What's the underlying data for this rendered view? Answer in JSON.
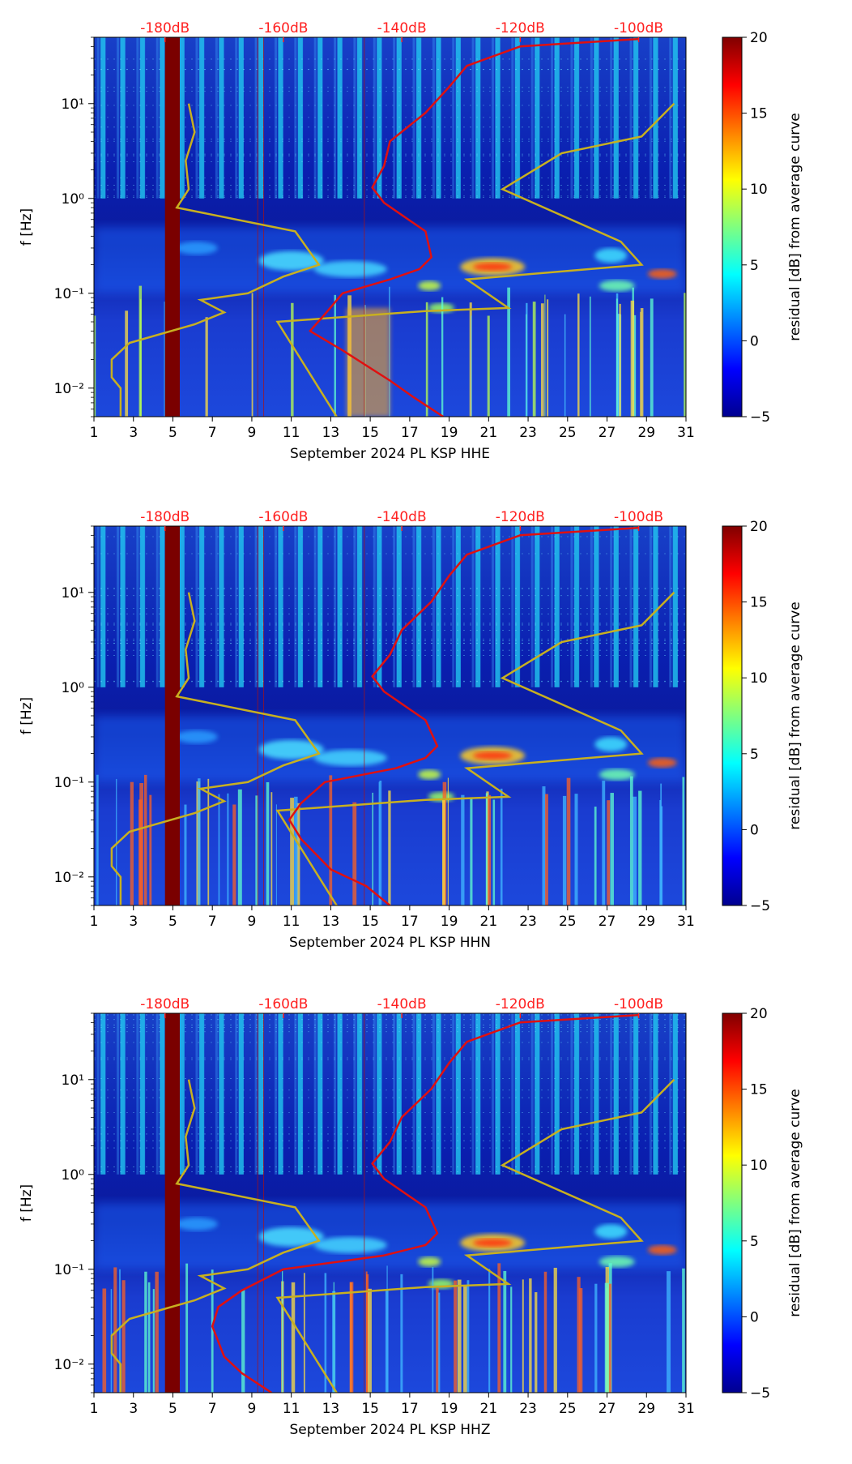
{
  "figure": {
    "top_scale_labels": [
      "-180dB",
      "-160dB",
      "-140dB",
      "-120dB",
      "-100dB"
    ],
    "colors": {
      "top_scale": "#ff2020",
      "model_curves": "#c8b020",
      "psd_curve": "#e01010",
      "event_band": "#7a0000",
      "background_low": "#00008f"
    }
  },
  "chart_data": [
    {
      "type": "heatmap",
      "title": "",
      "xlabel": "September 2024 PL KSP  HHE",
      "ylabel": "f [Hz]",
      "x_ticks": [
        "1",
        "3",
        "5",
        "7",
        "9",
        "11",
        "13",
        "15",
        "17",
        "19",
        "21",
        "23",
        "25",
        "27",
        "29",
        "31"
      ],
      "xlim": [
        1,
        31
      ],
      "y_ticks": [
        "10⁻²",
        "10⁻¹",
        "10⁰",
        "10¹"
      ],
      "y_tick_values": [
        0.01,
        0.1,
        1,
        10
      ],
      "ylim": [
        0.005,
        50
      ],
      "colorbar": {
        "label": "residual [dB] from average curve",
        "ticks": [
          "−5",
          "0",
          "5",
          "10",
          "15",
          "20"
        ],
        "range": [
          -5,
          20
        ]
      },
      "top_axis": {
        "labels": [
          "-180dB",
          "-160dB",
          "-140dB",
          "-120dB",
          "-100dB"
        ],
        "db_values": [
          -180,
          -160,
          -140,
          -120,
          -100
        ],
        "db_range": [
          -192,
          -92
        ]
      },
      "psd_curve": {
        "name": "average PSD",
        "x_db": [
          -133,
          -138,
          -142,
          -150,
          -155.5,
          -153,
          -150,
          -142,
          -137,
          -135,
          -136,
          -143,
          -145,
          -143,
          -142,
          -136,
          -132,
          -129,
          -120,
          -100
        ],
        "f_hz": [
          0.005,
          0.008,
          0.012,
          0.025,
          0.04,
          0.06,
          0.1,
          0.14,
          0.18,
          0.24,
          0.45,
          0.9,
          1.3,
          2.2,
          4,
          8,
          15,
          25,
          40,
          48
        ]
      },
      "noise_models": [
        {
          "name": "low noise model",
          "x_db": [
            -187.5,
            -187.5,
            -189,
            -189,
            -186,
            -175,
            -170,
            -174,
            -166,
            -160,
            -154,
            -158,
            -178,
            -176,
            -176.5,
            -175,
            -176
          ],
          "f_hz": [
            0.005,
            0.01,
            0.013,
            0.02,
            0.03,
            0.047,
            0.063,
            0.085,
            0.1,
            0.15,
            0.2,
            0.45,
            0.8,
            1.25,
            2.5,
            5,
            10
          ]
        },
        {
          "name": "high noise model",
          "x_db": [
            -151,
            -161,
            -136,
            -122,
            -129,
            -99.5,
            -103,
            -123,
            -113,
            -99.5,
            -94
          ],
          "f_hz": [
            0.005,
            0.05,
            0.065,
            0.07,
            0.14,
            0.2,
            0.35,
            1.25,
            3,
            4.5,
            10
          ]
        }
      ]
    },
    {
      "type": "heatmap",
      "title": "",
      "xlabel": "September 2024 PL KSP  HHN",
      "ylabel": "f [Hz]",
      "x_ticks": [
        "1",
        "3",
        "5",
        "7",
        "9",
        "11",
        "13",
        "15",
        "17",
        "19",
        "21",
        "23",
        "25",
        "27",
        "29",
        "31"
      ],
      "xlim": [
        1,
        31
      ],
      "y_ticks": [
        "10⁻²",
        "10⁻¹",
        "10⁰",
        "10¹"
      ],
      "y_tick_values": [
        0.01,
        0.1,
        1,
        10
      ],
      "ylim": [
        0.005,
        50
      ],
      "colorbar": {
        "label": "residual [dB] from average curve",
        "ticks": [
          "−5",
          "0",
          "5",
          "10",
          "15",
          "20"
        ],
        "range": [
          -5,
          20
        ]
      },
      "top_axis": {
        "labels": [
          "-180dB",
          "-160dB",
          "-140dB",
          "-120dB",
          "-100dB"
        ],
        "db_values": [
          -180,
          -160,
          -140,
          -120,
          -100
        ],
        "db_range": [
          -192,
          -92
        ]
      },
      "psd_curve": {
        "name": "average PSD",
        "x_db": [
          -142,
          -146,
          -152,
          -157,
          -159,
          -157,
          -153,
          -141,
          -136,
          -134,
          -136,
          -143,
          -145,
          -142,
          -140,
          -135,
          -132,
          -129,
          -120,
          -100
        ],
        "f_hz": [
          0.005,
          0.008,
          0.012,
          0.025,
          0.04,
          0.06,
          0.1,
          0.14,
          0.18,
          0.24,
          0.45,
          0.9,
          1.3,
          2.2,
          4,
          8,
          15,
          25,
          40,
          48
        ]
      },
      "noise_models": [
        {
          "name": "low noise model",
          "x_db": [
            -187.5,
            -187.5,
            -189,
            -189,
            -186,
            -175,
            -170,
            -174,
            -166,
            -160,
            -154,
            -158,
            -178,
            -176,
            -176.5,
            -175,
            -176
          ],
          "f_hz": [
            0.005,
            0.01,
            0.013,
            0.02,
            0.03,
            0.047,
            0.063,
            0.085,
            0.1,
            0.15,
            0.2,
            0.45,
            0.8,
            1.25,
            2.5,
            5,
            10
          ]
        },
        {
          "name": "high noise model",
          "x_db": [
            -151,
            -161,
            -136,
            -122,
            -129,
            -99.5,
            -103,
            -123,
            -113,
            -99.5,
            -94
          ],
          "f_hz": [
            0.005,
            0.05,
            0.065,
            0.07,
            0.14,
            0.2,
            0.35,
            1.25,
            3,
            4.5,
            10
          ]
        }
      ]
    },
    {
      "type": "heatmap",
      "title": "",
      "xlabel": "September 2024 PL KSP  HHZ",
      "ylabel": "f [Hz]",
      "x_ticks": [
        "1",
        "3",
        "5",
        "7",
        "9",
        "11",
        "13",
        "15",
        "17",
        "19",
        "21",
        "23",
        "25",
        "27",
        "29",
        "31"
      ],
      "xlim": [
        1,
        31
      ],
      "y_ticks": [
        "10⁻²",
        "10⁻¹",
        "10⁰",
        "10¹"
      ],
      "y_tick_values": [
        0.01,
        0.1,
        1,
        10
      ],
      "ylim": [
        0.005,
        50
      ],
      "colorbar": {
        "label": "residual [dB] from average curve",
        "ticks": [
          "−5",
          "0",
          "5",
          "10",
          "15",
          "20"
        ],
        "range": [
          -5,
          20
        ]
      },
      "top_axis": {
        "labels": [
          "-180dB",
          "-160dB",
          "-140dB",
          "-120dB",
          "-100dB"
        ],
        "db_values": [
          -180,
          -160,
          -140,
          -120,
          -100
        ],
        "db_range": [
          -192,
          -92
        ]
      },
      "psd_curve": {
        "name": "average PSD",
        "x_db": [
          -162,
          -167,
          -170,
          -172,
          -171,
          -167,
          -160,
          -143,
          -136,
          -134,
          -136,
          -143,
          -145,
          -142,
          -140,
          -135,
          -132,
          -129,
          -120,
          -100
        ],
        "f_hz": [
          0.005,
          0.008,
          0.012,
          0.025,
          0.04,
          0.06,
          0.1,
          0.14,
          0.18,
          0.24,
          0.45,
          0.9,
          1.3,
          2.2,
          4,
          8,
          15,
          25,
          40,
          48
        ]
      },
      "noise_models": [
        {
          "name": "low noise model",
          "x_db": [
            -187.5,
            -187.5,
            -189,
            -189,
            -186,
            -175,
            -170,
            -174,
            -166,
            -160,
            -154,
            -158,
            -178,
            -176,
            -176.5,
            -175,
            -176
          ],
          "f_hz": [
            0.005,
            0.01,
            0.013,
            0.02,
            0.03,
            0.047,
            0.063,
            0.085,
            0.1,
            0.15,
            0.2,
            0.45,
            0.8,
            1.25,
            2.5,
            5,
            10
          ]
        },
        {
          "name": "high noise model",
          "x_db": [
            -151,
            -161,
            -136,
            -122,
            -129,
            -99.5,
            -103,
            -123,
            -113,
            -99.5,
            -94
          ],
          "f_hz": [
            0.005,
            0.05,
            0.065,
            0.07,
            0.14,
            0.2,
            0.35,
            1.25,
            3,
            4.5,
            10
          ]
        }
      ]
    }
  ]
}
